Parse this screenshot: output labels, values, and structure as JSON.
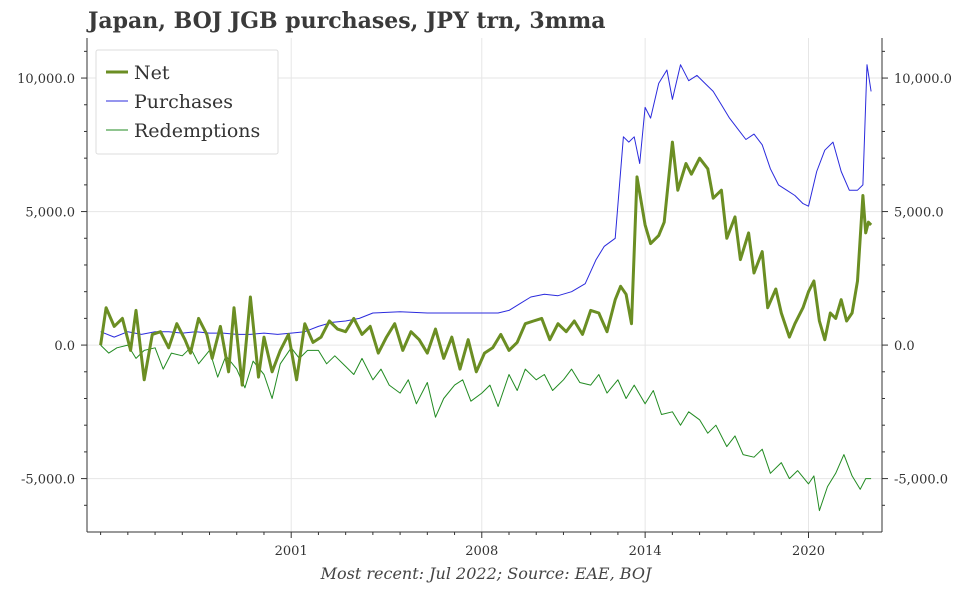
{
  "chart_data": {
    "type": "line",
    "title": "Japan, BOJ JGB purchases, JPY trn, 3mma",
    "footnote": "Most recent: Jul 2022; Source: EAE, BOJ",
    "xlim": [
      1993.5,
      2022.7
    ],
    "ylim": [
      -7000,
      11500
    ],
    "x_ticks": [
      2001,
      2008,
      2014,
      2020
    ],
    "x_tick_labels": [
      "2001",
      "2008",
      "2014",
      "2020"
    ],
    "y_ticks": [
      -5000,
      0,
      5000,
      10000
    ],
    "y_tick_labels": [
      "-5,000.0",
      "0.0",
      "5,000.0",
      "10,000.0"
    ],
    "grid": true,
    "legend_position": "top-left",
    "series": [
      {
        "name": "Net",
        "color": "#6b8e23",
        "width": 3,
        "x": [
          1994.0,
          1994.2,
          1994.5,
          1994.8,
          1995.1,
          1995.3,
          1995.6,
          1995.9,
          1996.2,
          1996.5,
          1996.8,
          1997.1,
          1997.3,
          1997.6,
          1997.9,
          1998.1,
          1998.4,
          1998.7,
          1998.9,
          1999.2,
          1999.5,
          1999.8,
          2000.0,
          2000.3,
          2000.6,
          2000.9,
          2001.2,
          2001.5,
          2001.8,
          2002.1,
          2002.4,
          2002.7,
          2003.0,
          2003.3,
          2003.6,
          2003.9,
          2004.2,
          2004.5,
          2004.8,
          2005.1,
          2005.4,
          2005.7,
          2006.0,
          2006.3,
          2006.6,
          2006.9,
          2007.2,
          2007.5,
          2007.8,
          2008.1,
          2008.4,
          2008.7,
          2009.0,
          2009.3,
          2009.6,
          2009.9,
          2010.2,
          2010.5,
          2010.8,
          2011.1,
          2011.4,
          2011.7,
          2012.0,
          2012.3,
          2012.6,
          2012.9,
          2013.1,
          2013.3,
          2013.5,
          2013.7,
          2014.0,
          2014.2,
          2014.5,
          2014.7,
          2015.0,
          2015.2,
          2015.5,
          2015.7,
          2016.0,
          2016.3,
          2016.5,
          2016.8,
          2017.0,
          2017.3,
          2017.5,
          2017.8,
          2018.0,
          2018.3,
          2018.5,
          2018.8,
          2019.0,
          2019.3,
          2019.5,
          2019.8,
          2020.0,
          2020.2,
          2020.4,
          2020.6,
          2020.8,
          2021.0,
          2021.2,
          2021.4,
          2021.6,
          2021.8,
          2022.0,
          2022.1,
          2022.2,
          2022.3
        ],
        "y": [
          0,
          1400,
          700,
          1000,
          -200,
          1300,
          -1300,
          400,
          500,
          -100,
          800,
          200,
          -300,
          1000,
          400,
          -500,
          700,
          -1000,
          1400,
          -1500,
          1800,
          -1200,
          300,
          -1000,
          -200,
          400,
          -1300,
          800,
          100,
          300,
          900,
          600,
          500,
          1000,
          400,
          700,
          -300,
          300,
          800,
          -200,
          500,
          200,
          -300,
          600,
          -500,
          300,
          -900,
          200,
          -1000,
          -300,
          -100,
          400,
          -200,
          100,
          800,
          900,
          1000,
          200,
          800,
          500,
          900,
          400,
          1300,
          1200,
          500,
          1700,
          2200,
          1900,
          800,
          6300,
          4500,
          3800,
          4100,
          4600,
          7600,
          5800,
          6800,
          6400,
          7000,
          6600,
          5500,
          5800,
          4000,
          4800,
          3200,
          4200,
          2700,
          3500,
          1400,
          2100,
          1200,
          300,
          800,
          1400,
          2000,
          2400,
          900,
          200,
          1200,
          1000,
          1700,
          900,
          1200,
          2400,
          5600,
          4200,
          4600,
          4500
        ]
      },
      {
        "name": "Purchases",
        "color": "#2b2bdd",
        "width": 1,
        "x": [
          1994.0,
          1994.5,
          1995.0,
          1995.5,
          1996.0,
          1996.5,
          1997.0,
          1997.5,
          1998.0,
          1998.5,
          1999.0,
          1999.5,
          2000.0,
          2000.5,
          2001.0,
          2001.5,
          2002.0,
          2002.5,
          2003.0,
          2003.5,
          2004.0,
          2005.0,
          2006.0,
          2007.0,
          2008.0,
          2008.6,
          2009.0,
          2009.4,
          2009.8,
          2010.3,
          2010.8,
          2011.3,
          2011.8,
          2012.2,
          2012.5,
          2012.9,
          2013.2,
          2013.4,
          2013.6,
          2013.8,
          2014.0,
          2014.2,
          2014.5,
          2014.8,
          2015.0,
          2015.3,
          2015.6,
          2015.9,
          2016.2,
          2016.5,
          2016.8,
          2017.1,
          2017.4,
          2017.7,
          2018.0,
          2018.3,
          2018.6,
          2018.9,
          2019.2,
          2019.5,
          2019.8,
          2020.0,
          2020.3,
          2020.6,
          2020.9,
          2021.2,
          2021.5,
          2021.8,
          2022.0,
          2022.15,
          2022.3
        ],
        "y": [
          500,
          300,
          500,
          400,
          500,
          500,
          450,
          500,
          450,
          450,
          400,
          400,
          450,
          400,
          450,
          500,
          700,
          850,
          900,
          1000,
          1200,
          1250,
          1200,
          1200,
          1200,
          1200,
          1300,
          1550,
          1800,
          1900,
          1850,
          2000,
          2300,
          3200,
          3700,
          4000,
          7800,
          7600,
          7800,
          6800,
          8900,
          8500,
          9800,
          10300,
          9200,
          10500,
          9900,
          10100,
          9800,
          9500,
          9000,
          8500,
          8100,
          7700,
          7900,
          7500,
          6600,
          6000,
          5800,
          5600,
          5300,
          5200,
          6500,
          7300,
          7600,
          6500,
          5800,
          5800,
          6000,
          10500,
          9500
        ]
      },
      {
        "name": "Redemptions",
        "color": "#228b22",
        "width": 1,
        "x": [
          1994.0,
          1994.3,
          1994.6,
          1995.0,
          1995.3,
          1995.6,
          1996.0,
          1996.3,
          1996.6,
          1997.0,
          1997.3,
          1997.6,
          1998.0,
          1998.3,
          1998.6,
          1999.0,
          1999.3,
          1999.6,
          2000.0,
          2000.3,
          2000.6,
          2001.0,
          2001.3,
          2001.6,
          2002.0,
          2002.3,
          2002.6,
          2003.0,
          2003.3,
          2003.6,
          2004.0,
          2004.3,
          2004.6,
          2005.0,
          2005.3,
          2005.6,
          2006.0,
          2006.3,
          2006.6,
          2007.0,
          2007.3,
          2007.6,
          2008.0,
          2008.3,
          2008.6,
          2009.0,
          2009.3,
          2009.6,
          2010.0,
          2010.3,
          2010.6,
          2011.0,
          2011.3,
          2011.6,
          2012.0,
          2012.3,
          2012.6,
          2013.0,
          2013.3,
          2013.6,
          2014.0,
          2014.3,
          2014.6,
          2015.0,
          2015.3,
          2015.6,
          2016.0,
          2016.3,
          2016.6,
          2017.0,
          2017.3,
          2017.6,
          2018.0,
          2018.3,
          2018.6,
          2019.0,
          2019.3,
          2019.6,
          2020.0,
          2020.2,
          2020.4,
          2020.7,
          2021.0,
          2021.3,
          2021.6,
          2021.9,
          2022.1,
          2022.3
        ],
        "y": [
          0,
          -300,
          -100,
          0,
          -500,
          -200,
          -100,
          -900,
          -300,
          -400,
          -100,
          -700,
          -200,
          -1200,
          -400,
          -900,
          -1600,
          -600,
          -1100,
          -2000,
          -700,
          -100,
          -500,
          -200,
          -200,
          -700,
          -400,
          -800,
          -1100,
          -500,
          -1300,
          -900,
          -1500,
          -1800,
          -1300,
          -2200,
          -1400,
          -2700,
          -2000,
          -1500,
          -1300,
          -2100,
          -1800,
          -1500,
          -2300,
          -1100,
          -1700,
          -900,
          -1300,
          -1100,
          -1700,
          -1300,
          -900,
          -1400,
          -1500,
          -1100,
          -1800,
          -1300,
          -2000,
          -1500,
          -2200,
          -1700,
          -2600,
          -2500,
          -3000,
          -2500,
          -2800,
          -3300,
          -3000,
          -3800,
          -3400,
          -4100,
          -4200,
          -3900,
          -4800,
          -4400,
          -5000,
          -4700,
          -5200,
          -4900,
          -6200,
          -5300,
          -4800,
          -4100,
          -4900,
          -5400,
          -5000,
          -5000
        ]
      }
    ]
  }
}
